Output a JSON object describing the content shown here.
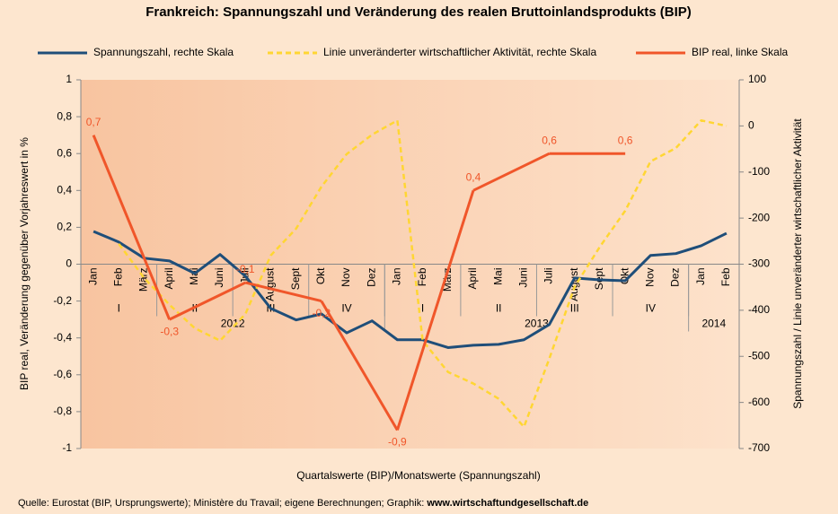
{
  "chart_data": {
    "type": "line",
    "title": "Frankreich: Spannungszahl und Veränderung des realen Bruttoinlandsprodukts (BIP)",
    "x_label": "Quartalswerte (BIP)/Monatswerte (Spannungszahl)",
    "y_label": "BIP real, Veränderung gegenüber Vorjahreswert in %",
    "y2_label": "Spannungszahl / Linie unveränderter wirtschaftlicher Aktivität",
    "source": "Quelle: Eurostat (BIP, Ursprungswerte); Ministère du Travail; eigene Berechnungen; Graphik: ",
    "source_link": "www.wirtschaftundgesellschaft.de",
    "categories": [
      "Jan",
      "Feb",
      "März",
      "April",
      "Mai",
      "Juni",
      "Juli",
      "August",
      "Sept",
      "Okt",
      "Nov",
      "Dez",
      "Jan",
      "Feb",
      "März",
      "April",
      "Mai",
      "Juni",
      "Juli",
      "August",
      "Sept",
      "Okt",
      "Nov",
      "Dez",
      "Jan",
      "Feb"
    ],
    "quarters": [
      "I",
      "II",
      "III",
      "IV",
      "I",
      "II",
      "III",
      "IV"
    ],
    "years": [
      "2012",
      "2013",
      "2014"
    ],
    "ylim": [
      -1,
      1
    ],
    "yticks": [
      {
        "value": 1,
        "label": "1"
      },
      {
        "value": 0.8,
        "label": "0,8"
      },
      {
        "value": 0.6,
        "label": "0,6"
      },
      {
        "value": 0.4,
        "label": "0,4"
      },
      {
        "value": 0.2,
        "label": "0,2"
      },
      0,
      {
        "value": -0.2,
        "label": "-0,2"
      },
      {
        "value": -0.4,
        "label": "-0,4"
      },
      {
        "value": -0.6,
        "label": "-0,6"
      },
      {
        "value": -0.8,
        "label": "-0,8"
      },
      -1
    ],
    "y2lim": [
      -700,
      100
    ],
    "y2ticks": [
      100,
      0,
      -100,
      -200,
      -300,
      -400,
      -500,
      -600,
      -700
    ],
    "grid": false,
    "series": [
      {
        "name": "Spannungszahl, rechte Skala",
        "color": "#1f4e79",
        "axis": "y2",
        "dash": false,
        "values": [
          -229,
          -252,
          -287,
          -293,
          -320,
          -279,
          -326,
          -396,
          -421,
          -408,
          -449,
          -423,
          -464,
          -464,
          -481,
          -476,
          -474,
          -464,
          -431,
          -330,
          -334,
          -336,
          -281,
          -277,
          -260,
          -233
        ]
      },
      {
        "name": "Linie unveränderter wirtschaftlicher Aktivität, rechte Skala",
        "color": "#ffd633",
        "axis": "y2",
        "dash": true,
        "values": [
          null,
          -256,
          -330,
          -388,
          -439,
          -466,
          -408,
          -281,
          -223,
          -132,
          -61,
          -19,
          12,
          -466,
          -534,
          -559,
          -592,
          -653,
          -505,
          -349,
          -262,
          -184,
          -77,
          -48,
          12,
          0
        ]
      },
      {
        "name": "BIP real, linke Skala",
        "color": "#f0562a",
        "axis": "y",
        "dash": false,
        "connect_gaps": true,
        "values": [
          0.7,
          null,
          null,
          -0.3,
          null,
          null,
          -0.1,
          null,
          null,
          -0.2,
          null,
          null,
          -0.9,
          null,
          null,
          0.4,
          null,
          null,
          0.6,
          null,
          null,
          0.6,
          null,
          null,
          null,
          null
        ],
        "value_labels": [
          "0,7",
          null,
          null,
          "-0,3",
          null,
          null,
          "-0,1",
          null,
          null,
          "-0,2",
          null,
          null,
          "-0,9",
          null,
          null,
          "0,4",
          null,
          null,
          "0,6",
          null,
          null,
          "0,6",
          null,
          null,
          null,
          null
        ]
      }
    ]
  }
}
